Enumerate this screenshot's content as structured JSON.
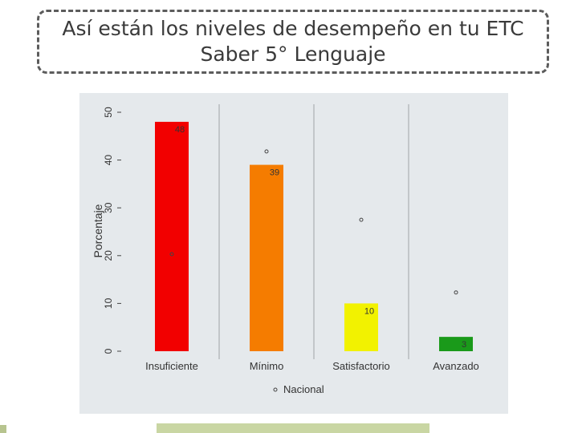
{
  "title": {
    "line1": "Así están los niveles de desempeño en tu ETC",
    "line2": "Saber 5° Lenguaje"
  },
  "chart_data": {
    "type": "bar",
    "title": "",
    "xlabel": "",
    "ylabel": "Porcentaje",
    "ylim": [
      0,
      50
    ],
    "yticks": [
      "0",
      "10",
      "20",
      "30",
      "40",
      "50"
    ],
    "grid": "vertical",
    "legend_position": "bottom",
    "categories": [
      "Insuficiente",
      "Mínimo",
      "Satisfactorio",
      "Avanzado"
    ],
    "series": [
      {
        "name": "ETC",
        "values": [
          48,
          39,
          10,
          3
        ],
        "labels": [
          "48",
          "39",
          "10",
          "3"
        ],
        "colors": [
          "#f20000",
          "#f57c00",
          "#f2f200",
          "#1a9a1a"
        ]
      },
      {
        "name": "Nacional",
        "marker": "circle",
        "values": [
          20.3,
          41.8,
          27.5,
          12.3
        ]
      }
    ]
  }
}
